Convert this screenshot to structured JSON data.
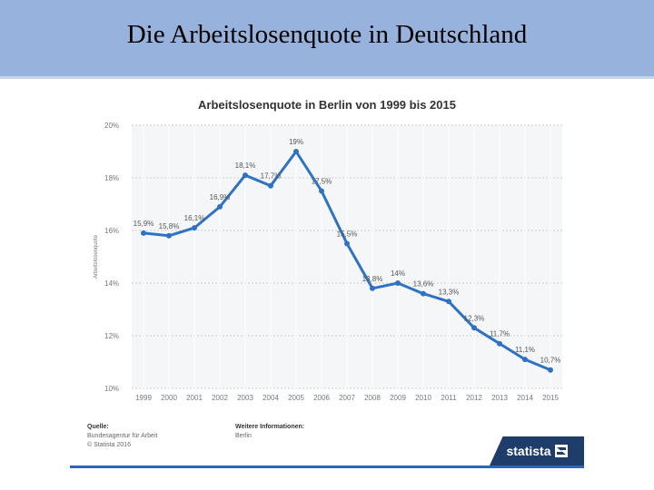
{
  "slide": {
    "title": "Die Arbeitslosenquote in Deutschland"
  },
  "chart_data": {
    "type": "line",
    "title": "Arbeitslosenquote in Berlin von 1999 bis 2015",
    "xlabel": "",
    "ylabel": "Arbeitslosenquote",
    "ylim": [
      10,
      20
    ],
    "grid": true,
    "yticks": [
      "20%",
      "18%",
      "16%",
      "14%",
      "12%",
      "10%"
    ],
    "categories": [
      "1999",
      "2000",
      "2001",
      "2002",
      "2003",
      "2004",
      "2005",
      "2006",
      "2007",
      "2008",
      "2009",
      "2010",
      "2011",
      "2012",
      "2013",
      "2014",
      "2015"
    ],
    "values": [
      15.9,
      15.8,
      16.1,
      16.9,
      18.1,
      17.7,
      19.0,
      17.5,
      15.5,
      13.8,
      14.0,
      13.6,
      13.3,
      12.3,
      11.7,
      11.1,
      10.7
    ],
    "labels": [
      "15,9%",
      "15,8%",
      "16,1%",
      "16,9%",
      "18,1%",
      "17,7%",
      "19%",
      "17,5%",
      "15,5%",
      "13,8%",
      "14%",
      "13,6%",
      "13,3%",
      "12,3%",
      "11,7%",
      "11,1%",
      "10,7%"
    ],
    "line_color": "#2f72c4"
  },
  "footer": {
    "source_head": "Quelle:",
    "source_line1": "Bundesagentur für Arbeit",
    "source_line2": "© Statista 2016",
    "info_head": "Weitere Informationen:",
    "info_line1": "Berlin"
  },
  "brand": {
    "name": "statista"
  }
}
